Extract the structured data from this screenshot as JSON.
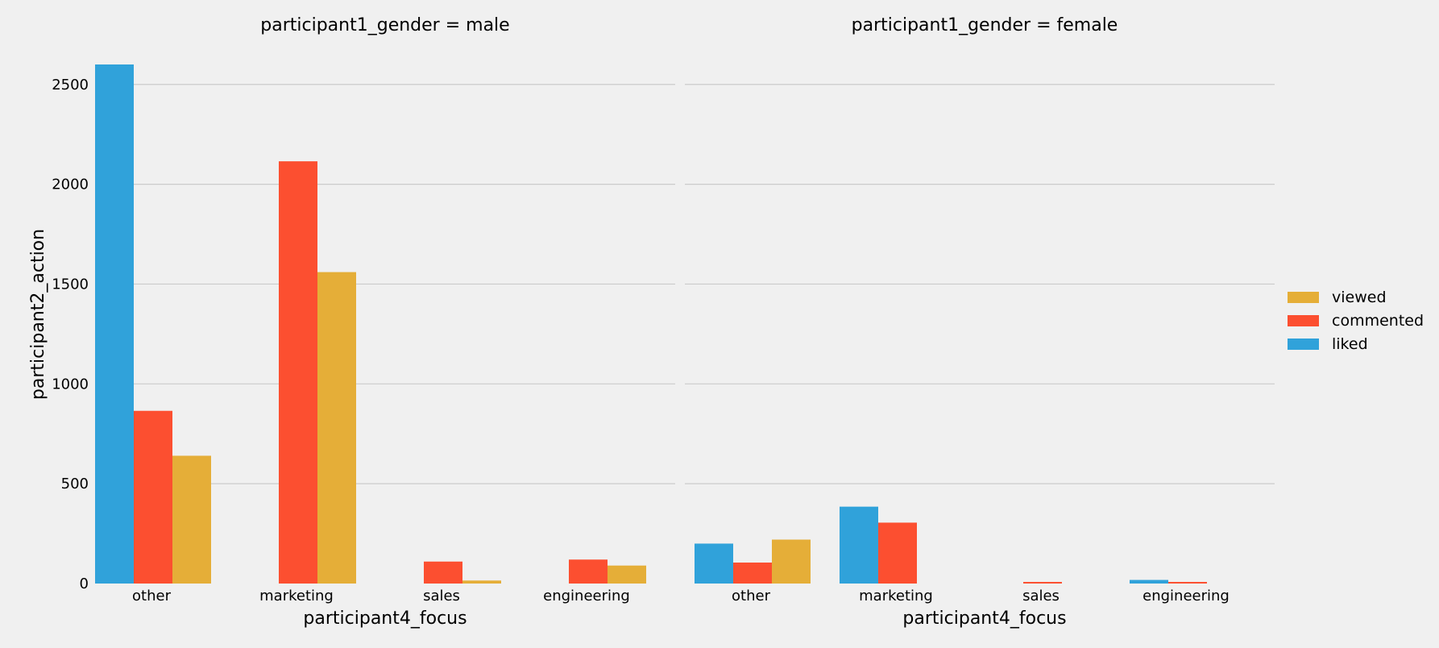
{
  "chart_data": [
    {
      "type": "bar",
      "title": "participant1_gender = male",
      "xlabel": "participant4_focus",
      "ylabel": "participant2_action",
      "categories": [
        "other",
        "marketing",
        "sales",
        "engineering"
      ],
      "ylim": [
        0,
        2600
      ],
      "yticks": [
        0,
        500,
        1000,
        1500,
        2000,
        2500
      ],
      "grid": "horizontal",
      "series": [
        {
          "name": "liked",
          "color": "#30a2da",
          "values": [
            2600,
            0,
            0,
            0
          ]
        },
        {
          "name": "commented",
          "color": "#fc4f30",
          "values": [
            865,
            2115,
            110,
            120
          ]
        },
        {
          "name": "viewed",
          "color": "#e5ae38",
          "values": [
            640,
            1560,
            15,
            90
          ]
        }
      ]
    },
    {
      "type": "bar",
      "title": "participant1_gender = female",
      "xlabel": "participant4_focus",
      "ylabel": "",
      "categories": [
        "other",
        "marketing",
        "sales",
        "engineering"
      ],
      "ylim": [
        0,
        2600
      ],
      "yticks": [
        0,
        500,
        1000,
        1500,
        2000,
        2500
      ],
      "grid": "horizontal",
      "series": [
        {
          "name": "liked",
          "color": "#30a2da",
          "values": [
            200,
            385,
            0,
            18
          ]
        },
        {
          "name": "commented",
          "color": "#fc4f30",
          "values": [
            105,
            305,
            8,
            8
          ]
        },
        {
          "name": "viewed",
          "color": "#e5ae38",
          "values": [
            220,
            0,
            0,
            0
          ]
        }
      ]
    }
  ],
  "legend": {
    "placement": "right",
    "items": [
      {
        "label": "viewed",
        "color": "#e5ae38"
      },
      {
        "label": "commented",
        "color": "#fc4f30"
      },
      {
        "label": "liked",
        "color": "#30a2da"
      }
    ]
  },
  "colors": {
    "background": "#f0f0f0",
    "grid": "#cbcbcb"
  }
}
